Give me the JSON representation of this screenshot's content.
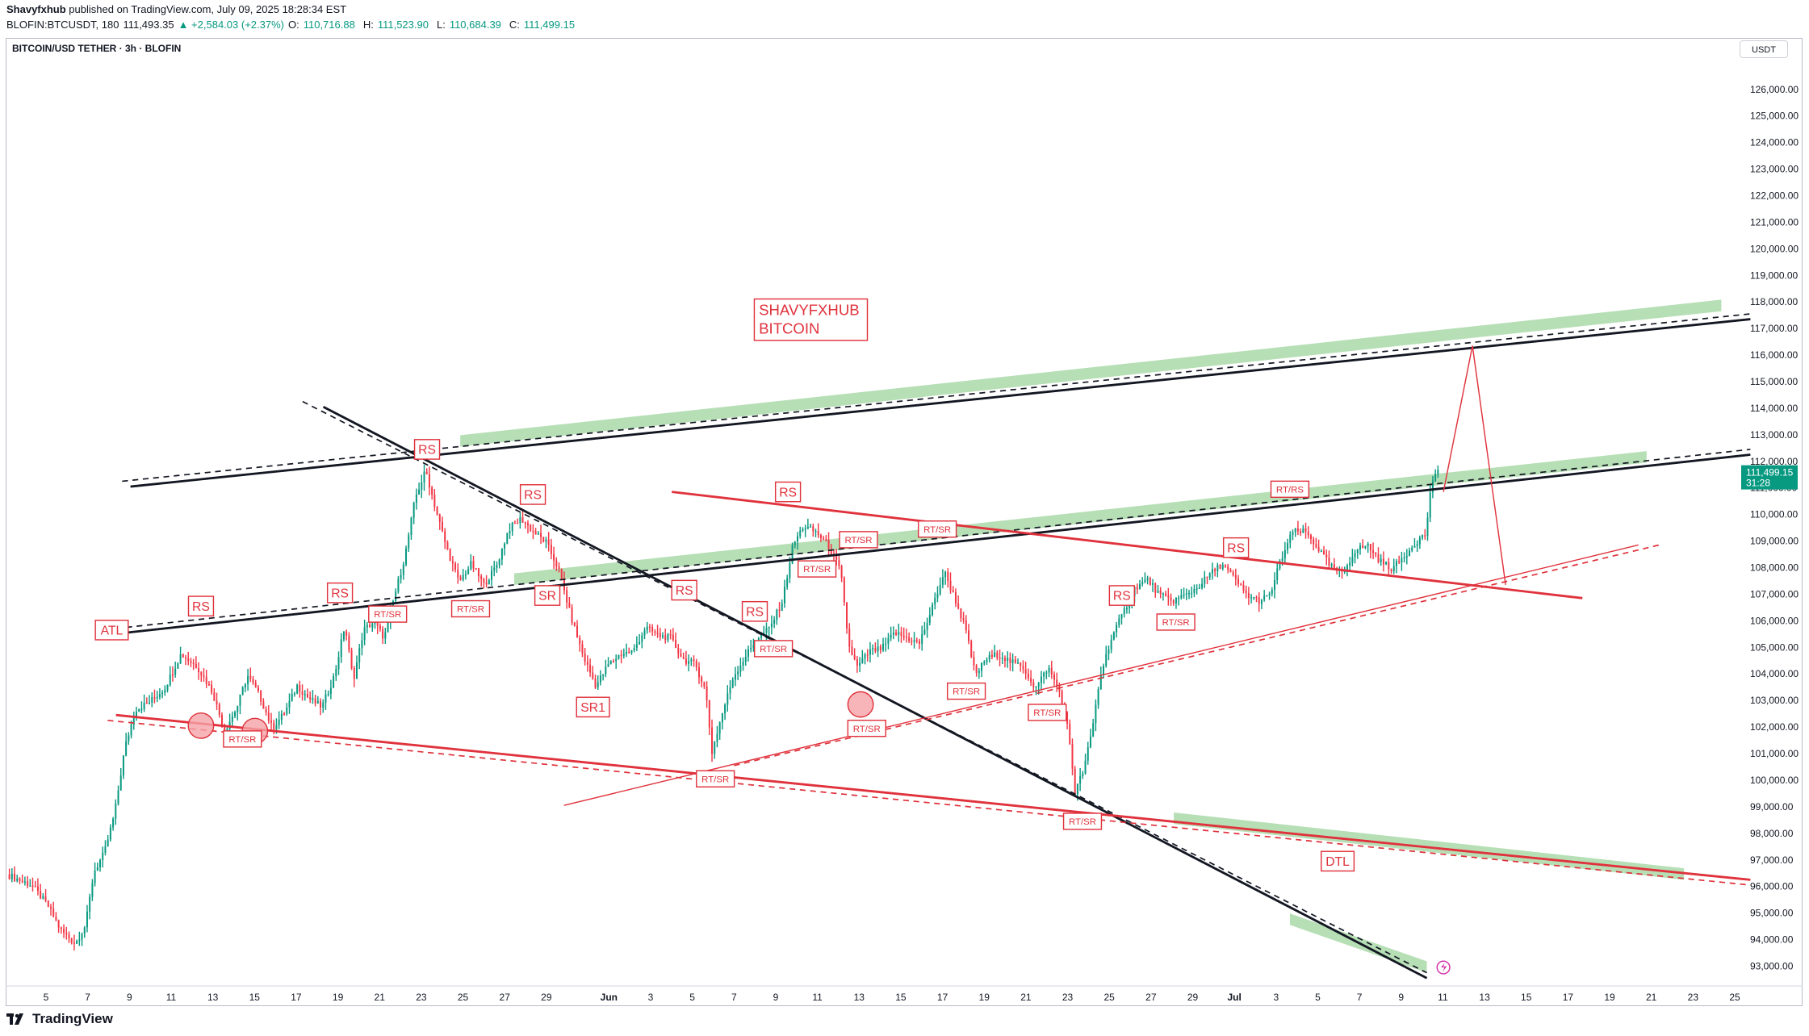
{
  "header": {
    "publisher": "Shavyfxhub",
    "published_text": " published on TradingView.com, July 09, 2025 18:28:34 EST",
    "symbol_line": "BLOFIN:BTCUSDT, 180",
    "last": "111,493.35",
    "change": "▲ +2,584.03 (+2.37%)",
    "o_label": "O:",
    "o_value": "110,716.88",
    "h_label": "H:",
    "h_value": "111,523.90",
    "l_label": "L:",
    "l_value": "110,684.39",
    "c_label": "C:",
    "c_value": "111,499.15"
  },
  "chart_title": "BITCOIN/USD TETHER · 3h · BLOFIN",
  "currency_button": "USDT",
  "footer_brand": "TradingView",
  "chart_data": {
    "type": "candlestick",
    "title": "BITCOIN/USD TETHER · 3h · BLOFIN",
    "exchange": "BLOFIN",
    "interval": "3h",
    "ylim": [
      92400,
      126800
    ],
    "y_ticks": [
      93000,
      94000,
      95000,
      96000,
      97000,
      98000,
      99000,
      100000,
      101000,
      102000,
      103000,
      104000,
      105000,
      106000,
      107000,
      108000,
      109000,
      110000,
      111000,
      112000,
      113000,
      114000,
      115000,
      116000,
      117000,
      118000,
      119000,
      120000,
      121000,
      122000,
      123000,
      124000,
      125000,
      126000
    ],
    "y_tick_labels": [
      "93,000.00",
      "94,000.00",
      "95,000.00",
      "96,000.00",
      "97,000.00",
      "98,000.00",
      "99,000.00",
      "100,000.00",
      "101,000.00",
      "102,000.00",
      "103,000.00",
      "104,000.00",
      "105,000.00",
      "106,000.00",
      "107,000.00",
      "108,000.00",
      "109,000.00",
      "110,000.00",
      "111,000.00",
      "112,000.00",
      "113,000.00",
      "114,000.00",
      "115,000.00",
      "116,000.00",
      "117,000.00",
      "118,000.00",
      "119,000.00",
      "120,000.00",
      "121,000.00",
      "122,000.00",
      "123,000.00",
      "124,000.00",
      "125,000.00",
      "126,000.00"
    ],
    "x_range_days": [
      2.6,
      86.2
    ],
    "x_ticks": [
      {
        "day": 5,
        "label": "5"
      },
      {
        "day": 7,
        "label": "7"
      },
      {
        "day": 9,
        "label": "9"
      },
      {
        "day": 11,
        "label": "11"
      },
      {
        "day": 13,
        "label": "13"
      },
      {
        "day": 15,
        "label": "15"
      },
      {
        "day": 17,
        "label": "17"
      },
      {
        "day": 19,
        "label": "19"
      },
      {
        "day": 21,
        "label": "21"
      },
      {
        "day": 23,
        "label": "23"
      },
      {
        "day": 25,
        "label": "25"
      },
      {
        "day": 27,
        "label": "27"
      },
      {
        "day": 29,
        "label": "29"
      },
      {
        "day": 32,
        "label": "Jun"
      },
      {
        "day": 34,
        "label": "3"
      },
      {
        "day": 36,
        "label": "5"
      },
      {
        "day": 38,
        "label": "7"
      },
      {
        "day": 40,
        "label": "9"
      },
      {
        "day": 42,
        "label": "11"
      },
      {
        "day": 44,
        "label": "13"
      },
      {
        "day": 46,
        "label": "15"
      },
      {
        "day": 48,
        "label": "17"
      },
      {
        "day": 50,
        "label": "19"
      },
      {
        "day": 52,
        "label": "21"
      },
      {
        "day": 54,
        "label": "23"
      },
      {
        "day": 56,
        "label": "25"
      },
      {
        "day": 58,
        "label": "27"
      },
      {
        "day": 60,
        "label": "29"
      },
      {
        "day": 62,
        "label": "Jul"
      },
      {
        "day": 64,
        "label": "3"
      },
      {
        "day": 66,
        "label": "5"
      },
      {
        "day": 68,
        "label": "7"
      },
      {
        "day": 70,
        "label": "9"
      },
      {
        "day": 72,
        "label": "11"
      },
      {
        "day": 74,
        "label": "13"
      },
      {
        "day": 76,
        "label": "15"
      },
      {
        "day": 78,
        "label": "17"
      },
      {
        "day": 80,
        "label": "19"
      },
      {
        "day": 82,
        "label": "21"
      },
      {
        "day": 84,
        "label": "23"
      },
      {
        "day": 86,
        "label": "25"
      }
    ],
    "price_keypoints": [
      [
        2.6,
        96400
      ],
      [
        3.8,
        96000
      ],
      [
        4.6,
        95200
      ],
      [
        5.2,
        94300
      ],
      [
        5.9,
        93800
      ],
      [
        6.4,
        94500
      ],
      [
        6.8,
        96500
      ],
      [
        7.3,
        97200
      ],
      [
        7.8,
        98700
      ],
      [
        8.3,
        101200
      ],
      [
        8.8,
        102600
      ],
      [
        9.5,
        102900
      ],
      [
        10.2,
        103400
      ],
      [
        11,
        104700
      ],
      [
        11.8,
        104200
      ],
      [
        12.5,
        103300
      ],
      [
        13.1,
        101800
      ],
      [
        13.7,
        102700
      ],
      [
        14.2,
        103900
      ],
      [
        14.8,
        103100
      ],
      [
        15.4,
        101900
      ],
      [
        16,
        102500
      ],
      [
        16.6,
        103500
      ],
      [
        17.2,
        103000
      ],
      [
        17.8,
        102700
      ],
      [
        18.4,
        103900
      ],
      [
        18.9,
        105800
      ],
      [
        19.3,
        103700
      ],
      [
        19.8,
        105600
      ],
      [
        20.3,
        105900
      ],
      [
        20.8,
        105300
      ],
      [
        21.3,
        106900
      ],
      [
        21.8,
        108400
      ],
      [
        22.3,
        110600
      ],
      [
        22.8,
        111600
      ],
      [
        23.3,
        110100
      ],
      [
        23.8,
        108700
      ],
      [
        24.4,
        107400
      ],
      [
        25,
        108100
      ],
      [
        25.6,
        107300
      ],
      [
        26.2,
        108000
      ],
      [
        26.8,
        109400
      ],
      [
        27.4,
        109800
      ],
      [
        28,
        109300
      ],
      [
        28.6,
        108900
      ],
      [
        29.2,
        107900
      ],
      [
        29.8,
        106100
      ],
      [
        30.4,
        104600
      ],
      [
        31,
        103500
      ],
      [
        31.6,
        104300
      ],
      [
        32.2,
        104700
      ],
      [
        32.8,
        104800
      ],
      [
        33.4,
        105700
      ],
      [
        34,
        105400
      ],
      [
        34.6,
        105300
      ],
      [
        35.2,
        104500
      ],
      [
        35.8,
        104300
      ],
      [
        36.3,
        103300
      ],
      [
        36.6,
        101000
      ],
      [
        37,
        102200
      ],
      [
        37.6,
        103800
      ],
      [
        38.2,
        104600
      ],
      [
        38.8,
        105300
      ],
      [
        39.4,
        105700
      ],
      [
        40,
        106700
      ],
      [
        40.5,
        108800
      ],
      [
        41,
        109500
      ],
      [
        41.6,
        109300
      ],
      [
        42.2,
        108800
      ],
      [
        42.8,
        107800
      ],
      [
        43.2,
        105000
      ],
      [
        43.6,
        104200
      ],
      [
        44.2,
        104800
      ],
      [
        44.8,
        104900
      ],
      [
        45.4,
        105500
      ],
      [
        46,
        105300
      ],
      [
        46.6,
        105100
      ],
      [
        47.2,
        106400
      ],
      [
        47.8,
        107800
      ],
      [
        48.3,
        106800
      ],
      [
        48.8,
        105700
      ],
      [
        49.3,
        103900
      ],
      [
        49.8,
        104500
      ],
      [
        50.4,
        104700
      ],
      [
        51,
        104400
      ],
      [
        51.6,
        104200
      ],
      [
        52.2,
        103400
      ],
      [
        52.8,
        104200
      ],
      [
        53.4,
        103200
      ],
      [
        53.8,
        101700
      ],
      [
        54.1,
        99500
      ],
      [
        54.5,
        100300
      ],
      [
        54.9,
        101700
      ],
      [
        55.3,
        103800
      ],
      [
        55.8,
        105200
      ],
      [
        56.4,
        106200
      ],
      [
        57,
        107200
      ],
      [
        57.6,
        107500
      ],
      [
        58.2,
        106900
      ],
      [
        58.8,
        106700
      ],
      [
        59.4,
        106900
      ],
      [
        60,
        107200
      ],
      [
        60.6,
        107700
      ],
      [
        61.2,
        108100
      ],
      [
        61.8,
        107500
      ],
      [
        62.4,
        106900
      ],
      [
        63,
        106700
      ],
      [
        63.5,
        106900
      ],
      [
        64,
        108200
      ],
      [
        64.6,
        109300
      ],
      [
        65.2,
        109300
      ],
      [
        65.8,
        108700
      ],
      [
        66.4,
        108000
      ],
      [
        67,
        107700
      ],
      [
        67.6,
        108600
      ],
      [
        68.2,
        108800
      ],
      [
        68.8,
        108200
      ],
      [
        69.4,
        107900
      ],
      [
        70,
        108400
      ],
      [
        70.5,
        108900
      ],
      [
        71,
        109200
      ],
      [
        71.3,
        111200
      ],
      [
        71.5,
        111499
      ]
    ],
    "trendlines": [
      {
        "name": "upper-channel-solid",
        "color": "#131722",
        "style": "solid",
        "points": [
          [
            8.5,
            111000
          ],
          [
            86.6,
            117300
          ]
        ]
      },
      {
        "name": "upper-channel-dashed",
        "color": "#131722",
        "style": "dashed",
        "points": [
          [
            8.1,
            111200
          ],
          [
            86.6,
            117500
          ]
        ]
      },
      {
        "name": "middle-channel-solid",
        "color": "#131722",
        "style": "solid",
        "points": [
          [
            8.3,
            105500
          ],
          [
            86.6,
            112200
          ]
        ]
      },
      {
        "name": "middle-channel-dashed",
        "color": "#131722",
        "style": "dashed",
        "points": [
          [
            8.3,
            105700
          ],
          [
            86.6,
            112400
          ]
        ]
      },
      {
        "name": "descending-black-solid",
        "color": "#131722",
        "style": "solid",
        "points": [
          [
            17.8,
            114000
          ],
          [
            71,
            92500
          ]
        ]
      },
      {
        "name": "descending-black-dashed",
        "color": "#131722",
        "style": "dashed",
        "points": [
          [
            16.8,
            114200
          ],
          [
            71,
            92700
          ]
        ]
      },
      {
        "name": "resistance-red",
        "color": "#e0323c",
        "style": "solid",
        "points": [
          [
            34.6,
            110800
          ],
          [
            78.5,
            106800
          ]
        ]
      },
      {
        "name": "lower-support-red",
        "color": "#e0323c",
        "style": "solid",
        "points": [
          [
            7.8,
            102400
          ],
          [
            86.6,
            96200
          ]
        ]
      },
      {
        "name": "lower-support-red-dashed",
        "color": "#e0323c",
        "style": "dashed",
        "points": [
          [
            7.4,
            102200
          ],
          [
            86.6,
            96000
          ]
        ]
      },
      {
        "name": "rising-support-thin",
        "color": "#e0323c",
        "style": "thin",
        "points": [
          [
            29.4,
            99000
          ],
          [
            81.2,
            108800
          ]
        ]
      },
      {
        "name": "rising-support-thin-dashed",
        "color": "#e0323c",
        "style": "dashed",
        "points": [
          [
            37.6,
            100500
          ],
          [
            82.2,
            108800
          ]
        ]
      },
      {
        "name": "projection",
        "color": "#e0323c",
        "style": "thin",
        "points": [
          [
            71.8,
            110800
          ],
          [
            73.2,
            116300
          ],
          [
            74.8,
            107300
          ]
        ]
      }
    ],
    "zones": [
      {
        "name": "upper-resistance-zone",
        "points": [
          [
            24.4,
            112500
          ],
          [
            85.2,
            117600
          ]
        ]
      },
      {
        "name": "middle-breakout-zone",
        "points": [
          [
            27,
            107300
          ],
          [
            81.6,
            111900
          ]
        ]
      },
      {
        "name": "lower-target-zone",
        "points": [
          [
            58.8,
            98300
          ],
          [
            83.4,
            96200
          ]
        ]
      },
      {
        "name": "bottom-zone",
        "points": [
          [
            64.4,
            94500
          ],
          [
            71,
            92700
          ]
        ]
      }
    ],
    "labels": [
      {
        "text": "ATL",
        "day": 7.6,
        "price": 105600,
        "boxed": true
      },
      {
        "text": "RS",
        "day": 11.9,
        "price": 106500,
        "boxed": true
      },
      {
        "text": "RS",
        "day": 18.6,
        "price": 107000,
        "boxed": true
      },
      {
        "text": "RS",
        "day": 22.8,
        "price": 112400,
        "boxed": true
      },
      {
        "text": "RS",
        "day": 27.9,
        "price": 110700,
        "boxed": true
      },
      {
        "text": "RS",
        "day": 35.2,
        "price": 107100,
        "boxed": true
      },
      {
        "text": "RS",
        "day": 38.6,
        "price": 106300,
        "boxed": true
      },
      {
        "text": "RS",
        "day": 40.2,
        "price": 110800,
        "boxed": true
      },
      {
        "text": "RS",
        "day": 56.3,
        "price": 106900,
        "boxed": true
      },
      {
        "text": "RS",
        "day": 61.8,
        "price": 108700,
        "boxed": true
      },
      {
        "text": "SR1",
        "day": 30.8,
        "price": 102700,
        "boxed": true
      },
      {
        "text": "SR",
        "day": 28.6,
        "price": 106900,
        "boxed": true
      },
      {
        "text": "RT/SR",
        "day": 13.9,
        "price": 101500,
        "boxed": true
      },
      {
        "text": "RT/SR",
        "day": 20.9,
        "price": 106200,
        "boxed": true
      },
      {
        "text": "RT/SR",
        "day": 24.9,
        "price": 106400,
        "boxed": true
      },
      {
        "text": "RT/SR",
        "day": 36.7,
        "price": 100000,
        "boxed": true
      },
      {
        "text": "RT/SR",
        "day": 39.5,
        "price": 104900,
        "boxed": true
      },
      {
        "text": "RT/SR",
        "day": 41.6,
        "price": 107900,
        "boxed": true
      },
      {
        "text": "RT/SR",
        "day": 43.6,
        "price": 109000,
        "boxed": true
      },
      {
        "text": "RT/SR",
        "day": 44,
        "price": 101900,
        "boxed": true
      },
      {
        "text": "RT/SR",
        "day": 47.4,
        "price": 109400,
        "boxed": true
      },
      {
        "text": "RT/SR",
        "day": 48.8,
        "price": 103300,
        "boxed": true
      },
      {
        "text": "RT/SR",
        "day": 52.7,
        "price": 102500,
        "boxed": true
      },
      {
        "text": "RT/SR",
        "day": 54.4,
        "price": 98400,
        "boxed": true
      },
      {
        "text": "RT/SR",
        "day": 58.9,
        "price": 105900,
        "boxed": true
      },
      {
        "text": "RT/RS",
        "day": 64.4,
        "price": 110900,
        "boxed": true
      },
      {
        "text": "DTL",
        "day": 66.7,
        "price": 96900,
        "boxed": true
      }
    ],
    "circles": [
      {
        "day": 11.9,
        "price": 102000
      },
      {
        "day": 14.5,
        "price": 101800
      },
      {
        "day": 43.7,
        "price": 102800
      }
    ],
    "note": {
      "line1": "SHAVYFXHUB",
      "line2": "BITCOIN",
      "day": 38.8,
      "price": 117800
    },
    "last_price_tag": {
      "price": 111499,
      "value": "111,499.15",
      "countdown": "31:28"
    }
  }
}
